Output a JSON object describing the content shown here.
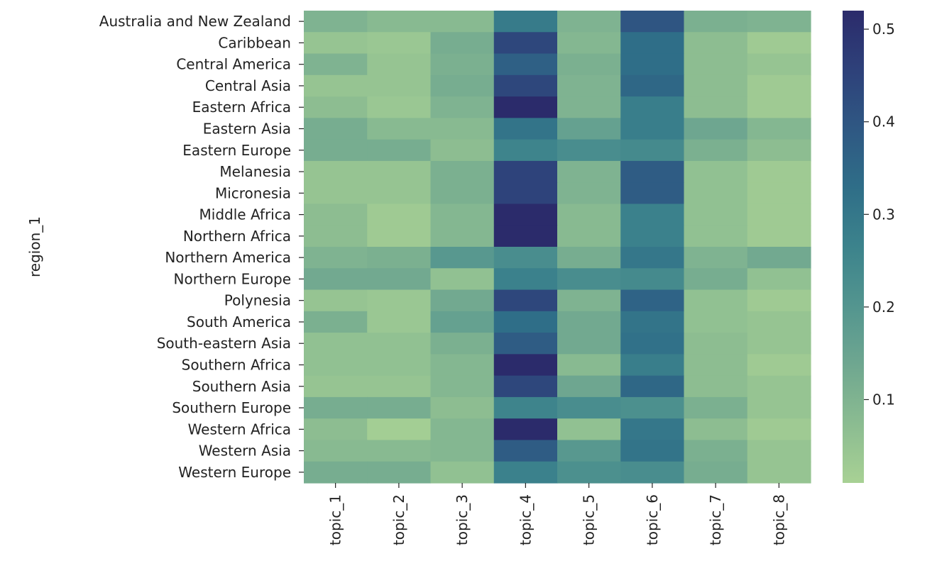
{
  "chart_data": {
    "type": "heatmap",
    "ylabel": "region_1",
    "xlabel": "",
    "x_categories": [
      "topic_1",
      "topic_2",
      "topic_3",
      "topic_4",
      "topic_5",
      "topic_6",
      "topic_7",
      "topic_8"
    ],
    "y_categories": [
      "Australia and New Zealand",
      "Caribbean",
      "Central America",
      "Central Asia",
      "Eastern Africa",
      "Eastern Asia",
      "Eastern Europe",
      "Melanesia",
      "Micronesia",
      "Middle Africa",
      "Northern Africa",
      "Northern America",
      "Northern Europe",
      "Polynesia",
      "South America",
      "South-eastern Asia",
      "Southern Africa",
      "Southern Asia",
      "Southern Europe",
      "Western Africa",
      "Western Asia",
      "Western Europe"
    ],
    "values": [
      [
        0.1,
        0.08,
        0.08,
        0.29,
        0.1,
        0.4,
        0.11,
        0.1
      ],
      [
        0.05,
        0.04,
        0.12,
        0.44,
        0.09,
        0.33,
        0.07,
        0.03
      ],
      [
        0.1,
        0.05,
        0.11,
        0.37,
        0.11,
        0.33,
        0.07,
        0.05
      ],
      [
        0.05,
        0.05,
        0.12,
        0.44,
        0.1,
        0.35,
        0.07,
        0.03
      ],
      [
        0.07,
        0.04,
        0.1,
        0.52,
        0.1,
        0.28,
        0.07,
        0.03
      ],
      [
        0.12,
        0.08,
        0.08,
        0.31,
        0.16,
        0.28,
        0.14,
        0.09
      ],
      [
        0.12,
        0.12,
        0.07,
        0.26,
        0.23,
        0.24,
        0.11,
        0.07
      ],
      [
        0.05,
        0.05,
        0.11,
        0.45,
        0.1,
        0.38,
        0.06,
        0.03
      ],
      [
        0.05,
        0.05,
        0.11,
        0.45,
        0.1,
        0.38,
        0.06,
        0.03
      ],
      [
        0.07,
        0.03,
        0.09,
        0.52,
        0.08,
        0.27,
        0.06,
        0.03
      ],
      [
        0.07,
        0.03,
        0.09,
        0.52,
        0.08,
        0.27,
        0.06,
        0.03
      ],
      [
        0.1,
        0.11,
        0.19,
        0.23,
        0.12,
        0.3,
        0.1,
        0.13
      ],
      [
        0.13,
        0.13,
        0.06,
        0.27,
        0.23,
        0.24,
        0.12,
        0.06
      ],
      [
        0.05,
        0.04,
        0.13,
        0.44,
        0.1,
        0.36,
        0.06,
        0.03
      ],
      [
        0.11,
        0.04,
        0.16,
        0.33,
        0.13,
        0.31,
        0.06,
        0.05
      ],
      [
        0.06,
        0.06,
        0.11,
        0.38,
        0.13,
        0.32,
        0.07,
        0.05
      ],
      [
        0.06,
        0.06,
        0.09,
        0.52,
        0.08,
        0.28,
        0.07,
        0.03
      ],
      [
        0.05,
        0.05,
        0.09,
        0.44,
        0.14,
        0.35,
        0.07,
        0.05
      ],
      [
        0.12,
        0.12,
        0.07,
        0.26,
        0.23,
        0.22,
        0.11,
        0.05
      ],
      [
        0.07,
        0.02,
        0.09,
        0.52,
        0.06,
        0.3,
        0.07,
        0.03
      ],
      [
        0.08,
        0.08,
        0.09,
        0.38,
        0.19,
        0.31,
        0.11,
        0.05
      ],
      [
        0.12,
        0.12,
        0.06,
        0.27,
        0.22,
        0.23,
        0.12,
        0.05
      ]
    ],
    "colorbar": {
      "min": 0.01,
      "max": 0.52,
      "ticks": [
        0.1,
        0.2,
        0.3,
        0.4,
        0.5
      ],
      "tick_labels": [
        "0.1",
        "0.2",
        "0.3",
        "0.4",
        "0.5"
      ],
      "colormap": "crest",
      "color_stops": [
        "#a8d194",
        "#8bbc91",
        "#6fa790",
        "#53958f",
        "#3c838c",
        "#2f6e88",
        "#2f5883",
        "#2e417a",
        "#2b2b6b"
      ]
    }
  }
}
